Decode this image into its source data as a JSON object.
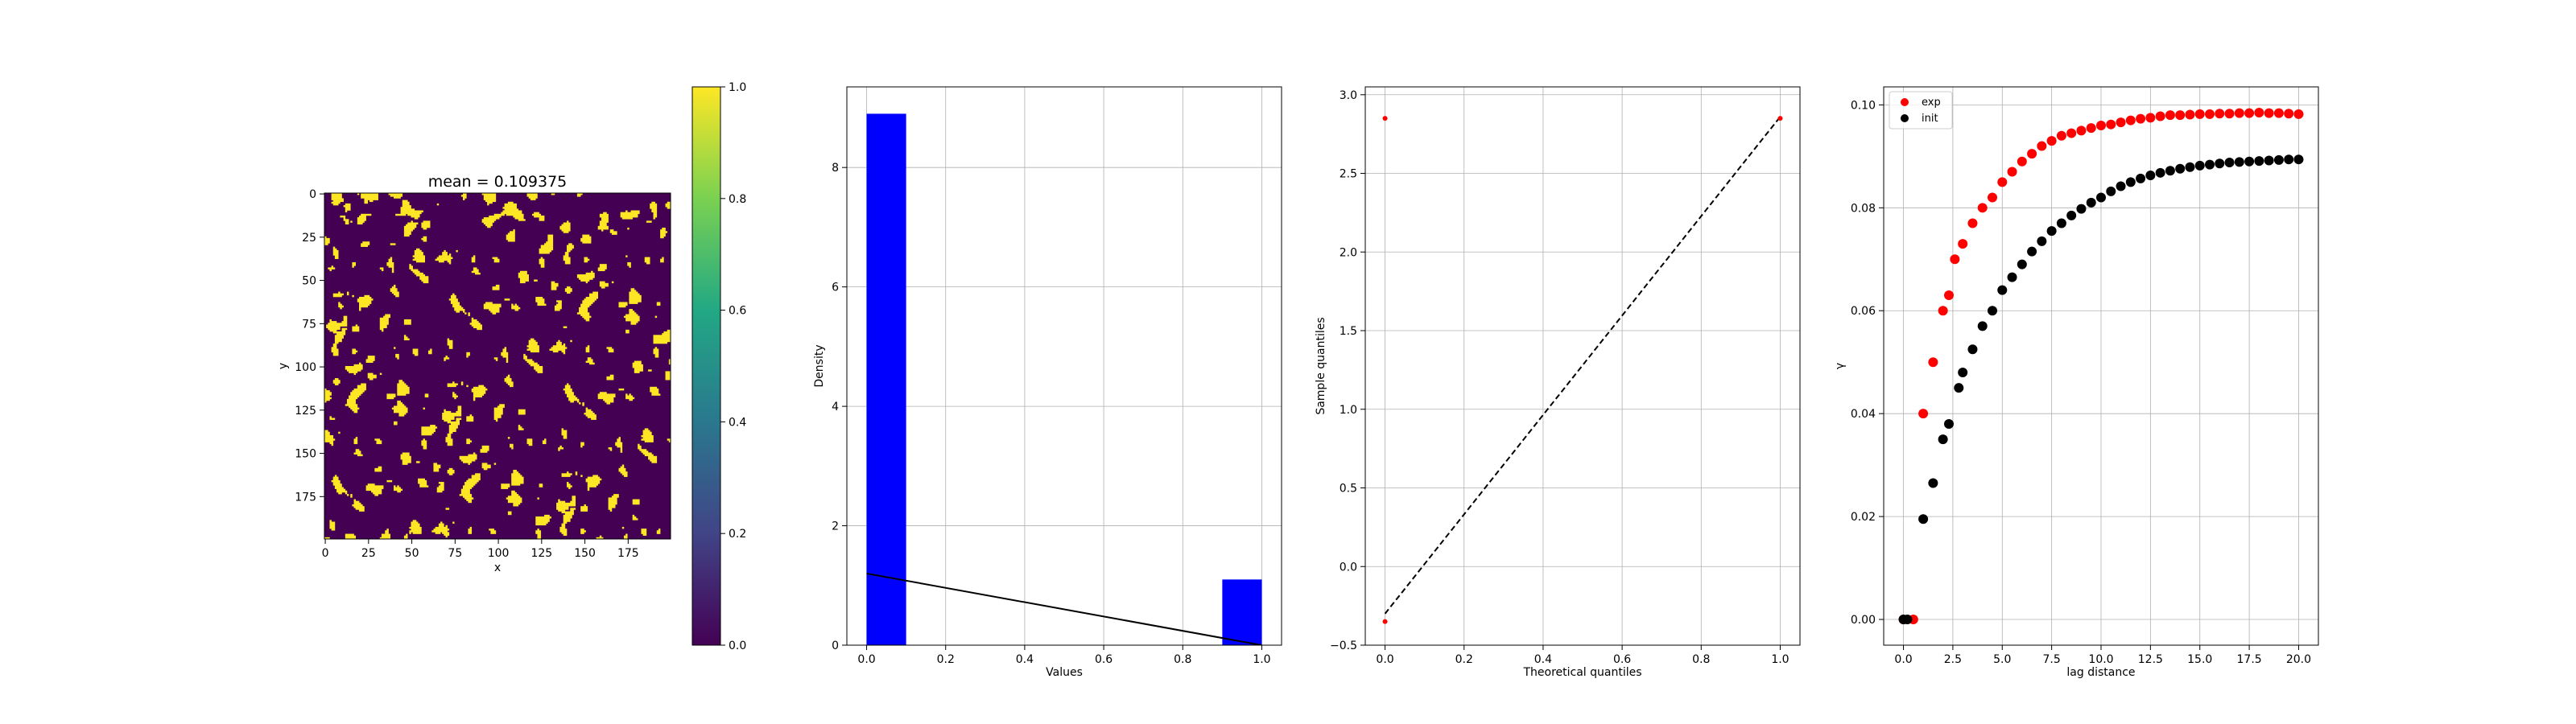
{
  "chart_data": [
    {
      "type": "heatmap",
      "title": "mean = 0.109375",
      "xlabel": "x",
      "ylabel": "y",
      "xlim": [
        0,
        200
      ],
      "ylim": [
        200,
        0
      ],
      "xticks": [
        0,
        25,
        50,
        75,
        100,
        125,
        150,
        175
      ],
      "yticks": [
        0,
        25,
        50,
        75,
        100,
        125,
        150,
        175
      ],
      "grid_size": [
        200,
        200
      ],
      "mean": 0.109375,
      "value_range": [
        0,
        1
      ],
      "colormap": "viridis",
      "low_color": "#440154",
      "high_color": "#fde725",
      "colorbar": {
        "ticks": [
          "0.0",
          "0.2",
          "0.4",
          "0.6",
          "0.8",
          "1.0"
        ],
        "vmin": 0,
        "vmax": 1,
        "stops": [
          "#440154",
          "#414487",
          "#2a788e",
          "#22a884",
          "#7ad151",
          "#fde725"
        ]
      },
      "grid": false
    },
    {
      "type": "bar",
      "title": "",
      "xlabel": "Values",
      "ylabel": "Density",
      "xlim": [
        -0.05,
        1.05
      ],
      "ylim": [
        0,
        9.35
      ],
      "xticks": [
        "0.0",
        "0.2",
        "0.4",
        "0.6",
        "0.8",
        "1.0"
      ],
      "yticks": [
        "0",
        "2",
        "4",
        "6",
        "8"
      ],
      "bins": [
        {
          "x0": 0.0,
          "x1": 0.1,
          "value": 8.9
        },
        {
          "x0": 0.9,
          "x1": 1.0,
          "value": 1.1
        }
      ],
      "bar_color": "#0000ff",
      "line": {
        "x": [
          0.0,
          1.0
        ],
        "y": [
          1.2,
          0.0
        ],
        "color": "#000000"
      },
      "grid": true
    },
    {
      "type": "scatter",
      "title": "",
      "xlabel": "Theoretical quantiles",
      "ylabel": "Sample quantiles",
      "xlim": [
        -0.05,
        1.05
      ],
      "ylim": [
        -0.5,
        3.05
      ],
      "xticks": [
        "0.0",
        "0.2",
        "0.4",
        "0.6",
        "0.8",
        "1.0"
      ],
      "yticks": [
        "−0.5",
        "0.0",
        "0.5",
        "1.0",
        "1.5",
        "2.0",
        "2.5",
        "3.0"
      ],
      "points": [
        {
          "x": 0.0,
          "y": 2.85
        },
        {
          "x": 0.0,
          "y": -0.35
        },
        {
          "x": 1.0,
          "y": 2.85
        }
      ],
      "point_color": "#ff0000",
      "reference_line": {
        "x": [
          0.0,
          1.0
        ],
        "y": [
          -0.3,
          2.86
        ],
        "color": "#000000",
        "style": "dashed"
      },
      "grid": true
    },
    {
      "type": "scatter",
      "title": "",
      "xlabel": "lag distance",
      "ylabel": "γ",
      "xlim": [
        -1.0,
        21.0
      ],
      "ylim": [
        -0.005,
        0.1035
      ],
      "xticks": [
        "0.0",
        "2.5",
        "5.0",
        "7.5",
        "10.0",
        "12.5",
        "15.0",
        "17.5",
        "20.0"
      ],
      "yticks": [
        "0.00",
        "0.02",
        "0.04",
        "0.06",
        "0.08",
        "0.10"
      ],
      "legend_position": "top-left",
      "series": [
        {
          "name": "exp",
          "color": "#ff0000",
          "x": [
            0.0,
            0.5,
            1.0,
            1.5,
            2.0,
            2.3,
            2.6,
            3.0,
            3.5,
            4.0,
            4.5,
            5.0,
            5.5,
            6.0,
            6.5,
            7.0,
            7.5,
            8.0,
            8.5,
            9.0,
            9.5,
            10.0,
            10.5,
            11.0,
            11.5,
            12.0,
            12.5,
            13.0,
            13.5,
            14.0,
            14.5,
            15.0,
            15.5,
            16.0,
            16.5,
            17.0,
            17.5,
            18.0,
            18.5,
            19.0,
            19.5,
            20.0
          ],
          "y": [
            0.0,
            0.0,
            0.04,
            0.05,
            0.06,
            0.063,
            0.07,
            0.073,
            0.077,
            0.08,
            0.082,
            0.085,
            0.087,
            0.089,
            0.0905,
            0.092,
            0.093,
            0.094,
            0.0945,
            0.095,
            0.0955,
            0.096,
            0.0962,
            0.0966,
            0.097,
            0.0973,
            0.0975,
            0.0978,
            0.098,
            0.098,
            0.0981,
            0.0982,
            0.0982,
            0.0983,
            0.0983,
            0.0984,
            0.0984,
            0.0985,
            0.0984,
            0.0984,
            0.0983,
            0.0982
          ]
        },
        {
          "name": "init",
          "color": "#000000",
          "x": [
            0.0,
            0.2,
            1.0,
            1.5,
            2.0,
            2.3,
            2.8,
            3.0,
            3.5,
            4.0,
            4.5,
            5.0,
            5.5,
            6.0,
            6.5,
            7.0,
            7.5,
            8.0,
            8.5,
            9.0,
            9.5,
            10.0,
            10.5,
            11.0,
            11.5,
            12.0,
            12.5,
            13.0,
            13.5,
            14.0,
            14.5,
            15.0,
            15.5,
            16.0,
            16.5,
            17.0,
            17.5,
            18.0,
            18.5,
            19.0,
            19.5,
            20.0
          ],
          "y": [
            0.0,
            0.0,
            0.0195,
            0.0265,
            0.035,
            0.038,
            0.045,
            0.048,
            0.0525,
            0.057,
            0.06,
            0.064,
            0.0665,
            0.069,
            0.0715,
            0.0735,
            0.0755,
            0.077,
            0.0785,
            0.0798,
            0.081,
            0.082,
            0.0832,
            0.0842,
            0.085,
            0.0857,
            0.0863,
            0.0868,
            0.0872,
            0.0876,
            0.0879,
            0.0882,
            0.0884,
            0.0886,
            0.0888,
            0.0889,
            0.089,
            0.0891,
            0.0892,
            0.0893,
            0.0894,
            0.0894
          ]
        }
      ],
      "grid": true
    }
  ]
}
